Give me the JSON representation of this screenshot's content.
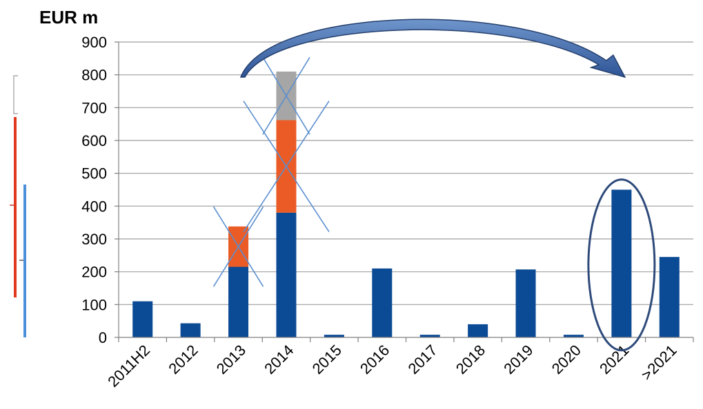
{
  "chart_data": {
    "type": "bar",
    "stacked": true,
    "unit_label": "EUR m",
    "categories": [
      "2011H2",
      "2012",
      "2013",
      "2014",
      "2015",
      "2016",
      "2017",
      "2018",
      "2019",
      "2020",
      "2021",
      ">2021"
    ],
    "series": [
      {
        "color": "#0b4a94",
        "values": [
          110,
          43,
          215,
          380,
          8,
          210,
          8,
          40,
          207,
          8,
          450,
          245
        ]
      },
      {
        "color": "#ea5b25",
        "values": [
          0,
          0,
          123,
          282,
          0,
          0,
          0,
          0,
          0,
          0,
          0,
          0
        ]
      },
      {
        "color": "#a6a6a6",
        "values": [
          0,
          0,
          0,
          148,
          0,
          0,
          0,
          0,
          0,
          0,
          0,
          0
        ]
      }
    ],
    "ylim": [
      0,
      900
    ],
    "yticks": [
      0,
      100,
      200,
      300,
      400,
      500,
      600,
      700,
      800,
      900
    ],
    "grid": true,
    "annotations": {
      "crossed_out": [
        "2013 (orange)",
        "2014 (orange)",
        "2014 (grey)"
      ],
      "circled": "2021",
      "arrow": "from 2014 to 2021"
    }
  }
}
